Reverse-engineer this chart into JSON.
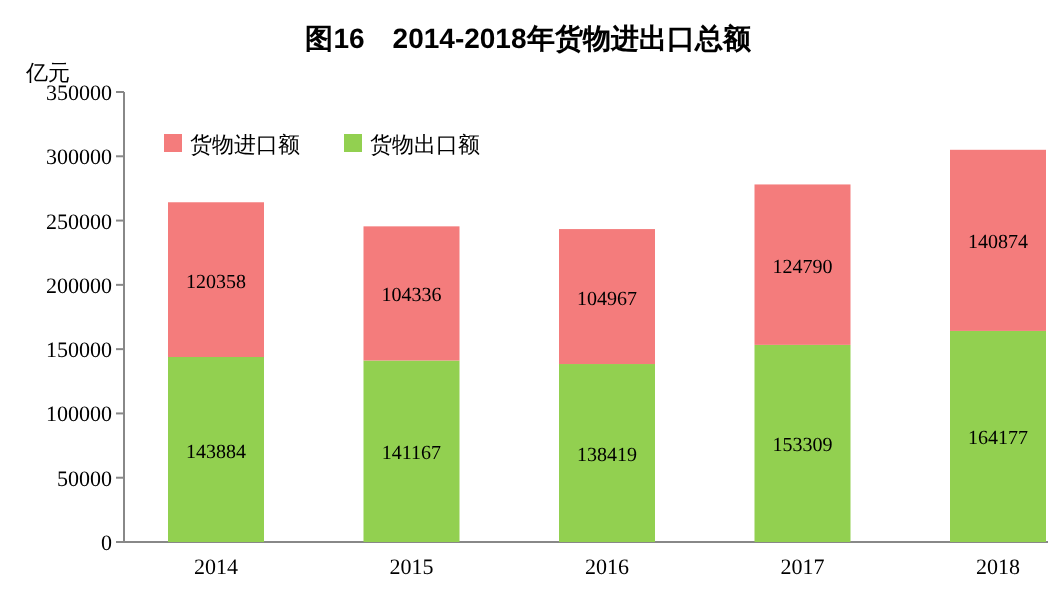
{
  "chart_data": {
    "type": "bar",
    "title": "图16　2014-2018年货物进出口总额",
    "ylabel": "亿元",
    "stacked": true,
    "data_labels": true,
    "legend": "top left",
    "grid": false,
    "categories": [
      "2014",
      "2015",
      "2016",
      "2017",
      "2018"
    ],
    "series": [
      {
        "name": "货物出口额",
        "color": "#92d050",
        "values": [
          143884,
          141167,
          138419,
          153309,
          164177
        ]
      },
      {
        "name": "货物进口额",
        "color": "#f47c7c",
        "values": [
          120358,
          104336,
          104967,
          124790,
          140874
        ]
      }
    ],
    "ylim": [
      0,
      350000
    ],
    "yticks": [
      0,
      50000,
      100000,
      150000,
      200000,
      250000,
      300000,
      350000
    ]
  }
}
